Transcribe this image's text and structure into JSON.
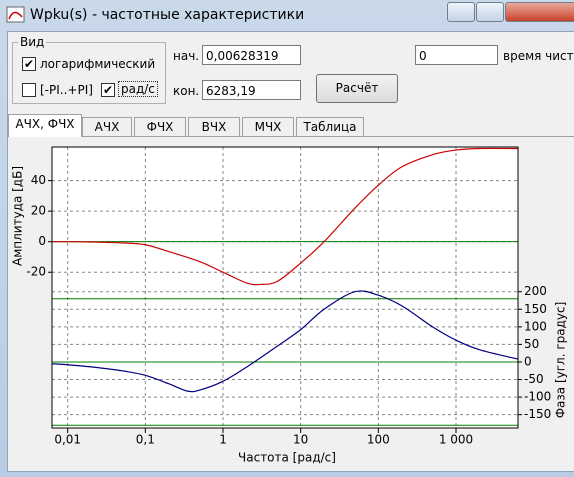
{
  "window": {
    "title": "Wpku(s) - частотные характеристики"
  },
  "view_group": {
    "title": "Вид",
    "checkboxes": [
      {
        "label": "логарифмический",
        "checked": true
      },
      {
        "label": "[-PI..+PI]",
        "checked": false
      },
      {
        "label": "рад/с",
        "checked": true
      }
    ]
  },
  "range": {
    "start_label": "нач.",
    "start_value": "0,00628319",
    "end_label": "кон.",
    "end_value": "6283,19",
    "button": "Расчёт"
  },
  "time": {
    "value": "0",
    "label": "время чист"
  },
  "tabs": {
    "items": [
      "АЧХ, ФЧХ",
      "АЧХ",
      "ФЧХ",
      "ВЧХ",
      "МЧХ",
      "Таблица"
    ],
    "active": 0
  },
  "chart_data": {
    "type": "line",
    "xlabel": "Частота [рад/с]",
    "ylabel": "Амплитуда [дБ]",
    "y2label": "Фаза [угл. градус]",
    "xscale": "log",
    "xlim": [
      0.00628319,
      6283.19
    ],
    "xticks": [
      {
        "value": 0.01,
        "label": "0,01"
      },
      {
        "value": 0.1,
        "label": "0,1"
      },
      1,
      10,
      100,
      {
        "value": 1000,
        "label": "1 000"
      }
    ],
    "ylim": [
      -122,
      62
    ],
    "yticks": [
      40,
      20,
      0,
      -20
    ],
    "y2lim": [
      -188,
      612
    ],
    "y2ticks": [
      200,
      150,
      100,
      50,
      0,
      -50,
      -100,
      -150
    ],
    "grid": true,
    "reference_color": "#008000",
    "y_reference_lines": [
      0
    ],
    "y2_reference_lines": [
      -180,
      0,
      180
    ],
    "series": [
      {
        "axis": "y",
        "color": "#cc0000",
        "x": [
          0.00628319,
          0.01,
          0.02,
          0.05,
          0.1,
          0.2,
          0.5,
          1,
          2,
          3,
          5,
          10,
          20,
          50,
          100,
          200,
          500,
          1000,
          2000,
          6283.19
        ],
        "values": [
          0,
          0,
          -0.2,
          -0.8,
          -2,
          -6.5,
          -13,
          -20,
          -27,
          -28,
          -26,
          -14,
          0,
          22,
          37,
          49,
          57,
          60,
          61,
          61
        ]
      },
      {
        "axis": "y2",
        "color": "#000080",
        "x": [
          0.00628319,
          0.01,
          0.02,
          0.05,
          0.1,
          0.2,
          0.35,
          0.5,
          1,
          2,
          5,
          10,
          20,
          50,
          100,
          200,
          500,
          1000,
          2000,
          6283.19
        ],
        "values": [
          -5,
          -8,
          -14,
          -25,
          -38,
          -62,
          -83,
          -80,
          -55,
          -15,
          45,
          92,
          150,
          200,
          190,
          160,
          100,
          62,
          35,
          8
        ]
      }
    ]
  }
}
